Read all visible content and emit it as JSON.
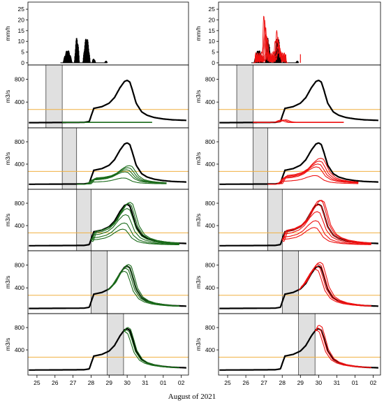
{
  "colors": {
    "observed": "#000000",
    "forecast_left": "#1a6b1a",
    "forecast_right": "#ee1111",
    "threshold": "#f0b040",
    "shade": "#e0e0e0"
  },
  "x_caption": "August of 2021",
  "chart_data": {
    "type": "line",
    "x_tick_labels": [
      "25",
      "26",
      "27",
      "28",
      "29",
      "30",
      "31",
      "01",
      "02"
    ],
    "x_tick_days": [
      25,
      26,
      27,
      28,
      29,
      30,
      31,
      32,
      33
    ],
    "xlim": [
      24.5,
      33.4
    ],
    "rain_panel": {
      "ylabel": "mm/h",
      "yticks": [
        0,
        5,
        10,
        15,
        20,
        25
      ],
      "ylim": [
        -1,
        27
      ],
      "observed_bursts": [
        {
          "start": 26.45,
          "end": 26.95,
          "peak": 6
        },
        {
          "start": 27.08,
          "end": 27.35,
          "peak": 12
        },
        {
          "start": 27.55,
          "end": 27.95,
          "peak": 12
        },
        {
          "start": 28.05,
          "end": 28.25,
          "peak": 2
        },
        {
          "start": 28.75,
          "end": 28.9,
          "peak": 1
        }
      ],
      "ensemble_peaks_right": [
        19,
        16,
        14,
        12,
        10,
        9
      ],
      "extra_right_burst": {
        "at": 29.0,
        "peak": 4
      }
    },
    "flow_panels": {
      "ylabel": "m3/s",
      "yticks": [
        400,
        800
      ],
      "ylim": [
        -50,
        1000
      ],
      "threshold": 270,
      "observed_hydrograph": {
        "t": [
          24.5,
          27.6,
          27.9,
          28.05,
          28.15,
          28.3,
          28.6,
          29.0,
          29.3,
          29.6,
          29.85,
          30.0,
          30.15,
          30.3,
          30.5,
          30.8,
          31.1,
          31.5,
          32.0,
          32.5,
          33.3
        ],
        "q": [
          40,
          45,
          60,
          200,
          290,
          300,
          320,
          380,
          480,
          650,
          760,
          780,
          750,
          600,
          380,
          230,
          170,
          130,
          105,
          90,
          80
        ]
      },
      "forecast_windows": [
        {
          "start": 25.5,
          "end": 26.4
        },
        {
          "start": 26.4,
          "end": 27.2
        },
        {
          "start": 27.2,
          "end": 28.0
        },
        {
          "start": 28.0,
          "end": 28.9
        },
        {
          "start": 28.9,
          "end": 29.8
        }
      ]
    }
  }
}
